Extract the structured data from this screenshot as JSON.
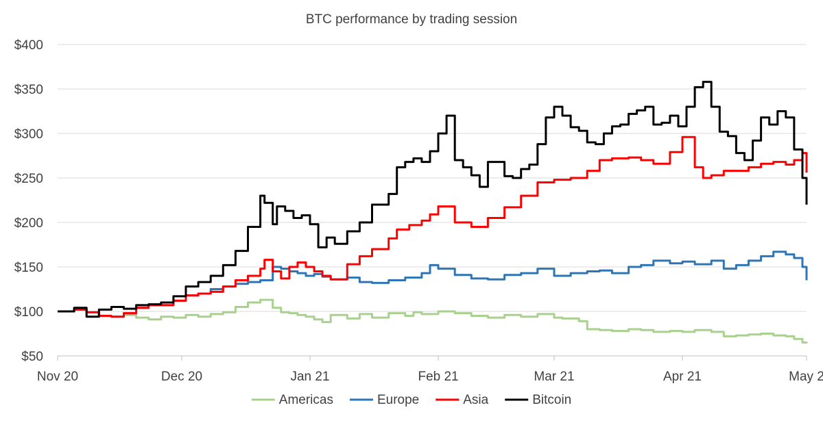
{
  "chart_data": {
    "type": "line",
    "title": "BTC performance by trading session",
    "xlabel": "",
    "ylabel": "",
    "ylim": [
      50,
      400
    ],
    "y_ticks": [
      50,
      100,
      150,
      200,
      250,
      300,
      350,
      400
    ],
    "y_tick_labels": [
      "$50",
      "$100",
      "$150",
      "$200",
      "$250",
      "$300",
      "$350",
      "$400"
    ],
    "x_ticks": [
      0,
      30,
      61,
      92,
      120,
      151,
      181
    ],
    "x_tick_labels": [
      "Nov 20",
      "Dec 20",
      "Jan 21",
      "Feb 21",
      "Mar 21",
      "Apr 21",
      "May 2"
    ],
    "xlim": [
      0,
      181
    ],
    "grid": "horizontal",
    "legend_position": "bottom",
    "series": [
      {
        "name": "Americas",
        "color": "#a9d18e",
        "x": [
          0,
          4,
          7,
          10,
          13,
          16,
          19,
          22,
          25,
          28,
          31,
          34,
          37,
          40,
          43,
          46,
          49,
          52,
          54,
          56,
          58,
          60,
          62,
          64,
          66,
          70,
          73,
          76,
          80,
          84,
          86,
          88,
          92,
          96,
          100,
          104,
          108,
          112,
          116,
          120,
          122,
          126,
          128,
          131,
          134,
          138,
          141,
          144,
          148,
          151,
          154,
          158,
          161,
          164,
          167,
          170,
          173,
          176,
          178,
          180,
          181
        ],
        "values": [
          100,
          102,
          99,
          95,
          94,
          96,
          93,
          91,
          94,
          93,
          96,
          94,
          97,
          99,
          105,
          110,
          113,
          104,
          99,
          98,
          96,
          94,
          91,
          88,
          96,
          92,
          97,
          93,
          98,
          95,
          99,
          97,
          100,
          98,
          95,
          93,
          96,
          94,
          97,
          93,
          92,
          89,
          80,
          79,
          78,
          80,
          79,
          77,
          78,
          77,
          79,
          77,
          72,
          73,
          74,
          75,
          73,
          72,
          69,
          65,
          64
        ]
      },
      {
        "name": "Europe",
        "color": "#2e75b6",
        "x": [
          0,
          4,
          7,
          10,
          13,
          16,
          19,
          22,
          25,
          28,
          31,
          34,
          37,
          40,
          43,
          46,
          49,
          52,
          54,
          56,
          58,
          60,
          62,
          64,
          66,
          70,
          73,
          76,
          80,
          84,
          88,
          90,
          92,
          96,
          100,
          104,
          108,
          112,
          116,
          120,
          124,
          128,
          131,
          134,
          138,
          141,
          144,
          148,
          151,
          154,
          158,
          161,
          164,
          167,
          170,
          173,
          176,
          178,
          180,
          181
        ],
        "values": [
          100,
          102,
          99,
          95,
          94,
          98,
          104,
          107,
          107,
          112,
          118,
          120,
          125,
          128,
          131,
          133,
          135,
          150,
          148,
          145,
          143,
          140,
          142,
          139,
          136,
          138,
          133,
          132,
          135,
          138,
          143,
          152,
          148,
          141,
          137,
          136,
          141,
          143,
          148,
          140,
          143,
          145,
          146,
          143,
          150,
          152,
          157,
          154,
          156,
          153,
          157,
          148,
          152,
          157,
          162,
          167,
          164,
          160,
          150,
          135
        ]
      },
      {
        "name": "Asia",
        "color": "#ff0000",
        "x": [
          0,
          4,
          7,
          10,
          13,
          16,
          19,
          22,
          25,
          28,
          31,
          34,
          37,
          40,
          43,
          46,
          49,
          50,
          52,
          54,
          56,
          58,
          60,
          62,
          64,
          66,
          70,
          73,
          76,
          80,
          82,
          85,
          88,
          90,
          92,
          96,
          100,
          104,
          108,
          112,
          116,
          120,
          124,
          128,
          131,
          134,
          138,
          141,
          144,
          148,
          151,
          154,
          156,
          158,
          161,
          164,
          167,
          170,
          173,
          176,
          178,
          180,
          181
        ],
        "values": [
          100,
          102,
          99,
          95,
          94,
          98,
          104,
          107,
          107,
          112,
          118,
          120,
          122,
          128,
          135,
          140,
          148,
          158,
          145,
          137,
          150,
          155,
          150,
          145,
          140,
          136,
          153,
          162,
          170,
          182,
          192,
          197,
          202,
          209,
          218,
          200,
          195,
          205,
          217,
          230,
          245,
          248,
          250,
          258,
          270,
          272,
          273,
          270,
          266,
          279,
          296,
          262,
          250,
          253,
          258,
          258,
          262,
          266,
          268,
          265,
          270,
          278,
          256
        ]
      },
      {
        "name": "Bitcoin",
        "color": "#000000",
        "x": [
          0,
          4,
          7,
          10,
          13,
          16,
          19,
          22,
          25,
          28,
          31,
          34,
          37,
          40,
          43,
          46,
          49,
          50,
          52,
          53,
          55,
          57,
          59,
          61,
          63,
          65,
          67,
          70,
          73,
          76,
          80,
          82,
          84,
          86,
          88,
          90,
          92,
          94,
          96,
          98,
          100,
          102,
          104,
          106,
          108,
          110,
          112,
          114,
          116,
          118,
          120,
          122,
          124,
          126,
          128,
          130,
          132,
          134,
          136,
          138,
          140,
          142,
          144,
          146,
          148,
          150,
          152,
          154,
          156,
          158,
          160,
          162,
          164,
          166,
          168,
          170,
          172,
          174,
          176,
          178,
          180,
          181
        ],
        "values": [
          100,
          104,
          94,
          102,
          105,
          103,
          107,
          108,
          110,
          117,
          128,
          133,
          140,
          152,
          168,
          195,
          230,
          222,
          198,
          218,
          213,
          205,
          208,
          198,
          172,
          183,
          176,
          190,
          200,
          220,
          232,
          262,
          268,
          272,
          268,
          280,
          300,
          320,
          270,
          262,
          253,
          240,
          268,
          268,
          252,
          250,
          260,
          265,
          288,
          318,
          330,
          320,
          307,
          303,
          290,
          288,
          300,
          308,
          310,
          322,
          326,
          330,
          310,
          312,
          320,
          308,
          330,
          352,
          358,
          330,
          302,
          297,
          278,
          270,
          292,
          318,
          310,
          325,
          318,
          282,
          250,
          220
        ]
      }
    ]
  }
}
